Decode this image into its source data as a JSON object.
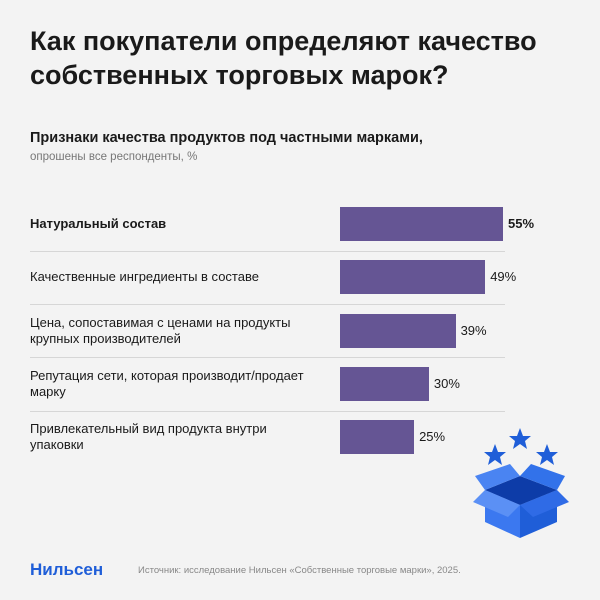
{
  "chart_data": {
    "type": "bar",
    "orientation": "horizontal",
    "title": "Как покупатели определяют качество собственных торговых марок?",
    "subtitle": "Признаки качества продуктов под частными марками,",
    "note": "опрошены все респонденты, %",
    "categories": [
      "Натуральный состав",
      "Качественные ингредиенты в составе",
      "Цена, сопоставимая с ценами на продукты крупных производителей",
      "Репутация сети, которая производит/продает марку",
      "Привлекательный вид продукта внутри упаковки"
    ],
    "values": [
      55,
      49,
      39,
      30,
      25
    ],
    "value_labels": [
      "55%",
      "49%",
      "39%",
      "30%",
      "25%"
    ],
    "color": "#655594"
  },
  "footer": {
    "logo": "Нильсен",
    "source": "Источник: исследование Нильсен «Собственные торговые марки», 2025."
  }
}
